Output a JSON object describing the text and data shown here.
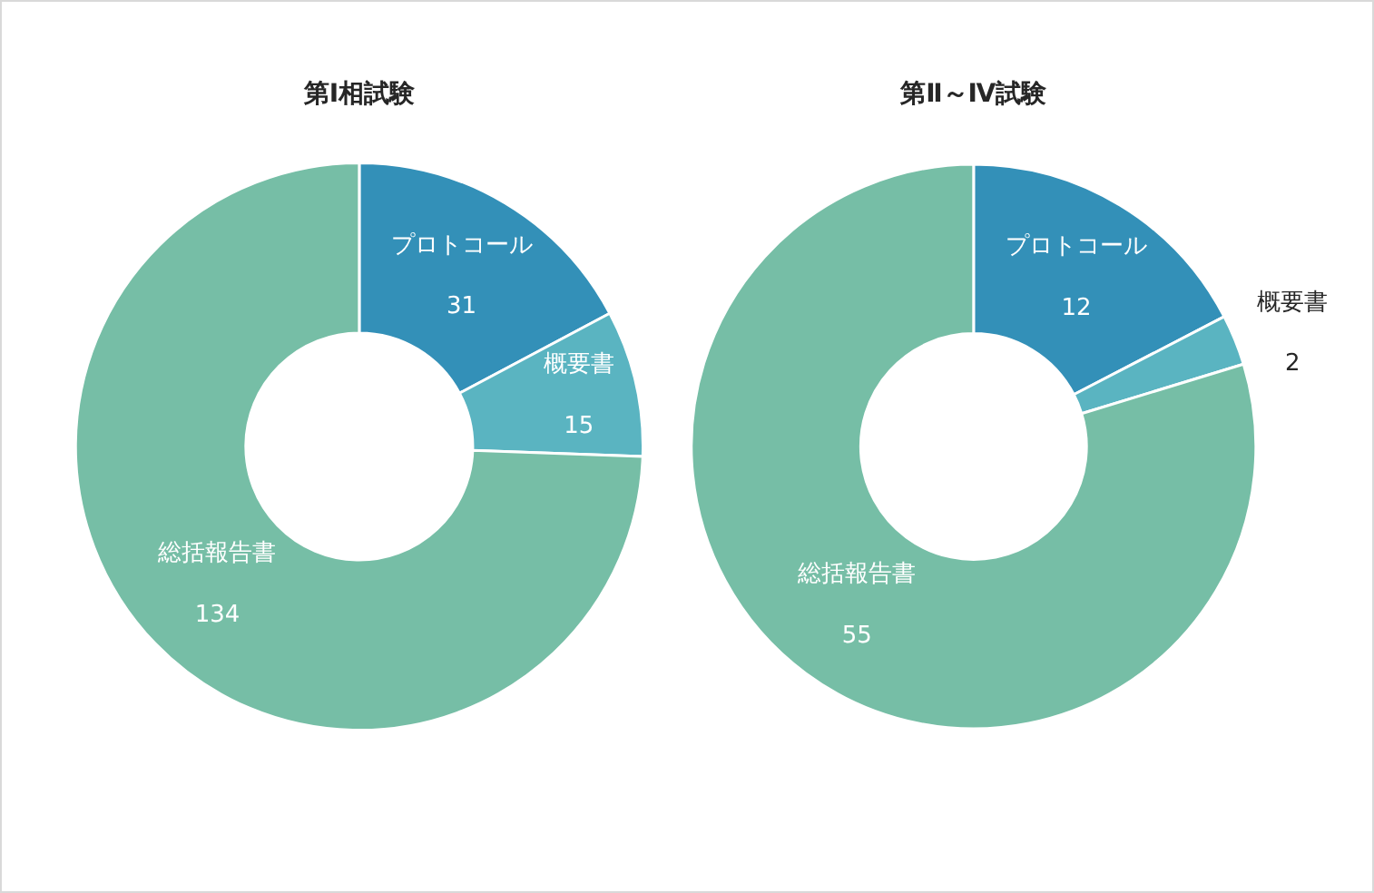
{
  "chart_data": [
    {
      "type": "donut",
      "title": "第Ⅰ相試験",
      "categories": [
        "プロトコール",
        "概要書",
        "総括報告書"
      ],
      "values": [
        31,
        15,
        134
      ],
      "colors": [
        "#3390b8",
        "#5ab4c1",
        "#76bea6"
      ],
      "data_labels": true,
      "legend": false
    },
    {
      "type": "donut",
      "title": "第Ⅱ～Ⅳ試験",
      "categories": [
        "プロトコール",
        "概要書",
        "総括報告書"
      ],
      "values": [
        12,
        2,
        55
      ],
      "colors": [
        "#3390b8",
        "#5ab4c1",
        "#76bea6"
      ],
      "data_labels": true,
      "legend": false
    }
  ]
}
